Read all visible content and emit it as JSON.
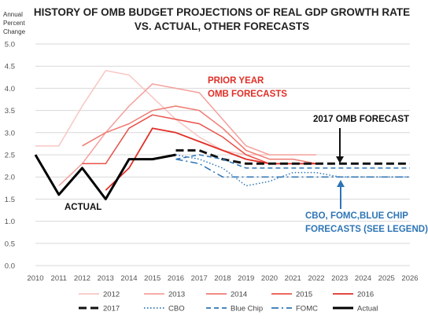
{
  "chart_data": {
    "type": "line",
    "title": [
      "HISTORY OF OMB BUDGET PROJECTIONS OF REAL GDP GROWTH RATE",
      "VS. ACTUAL, OTHER FORECASTS"
    ],
    "ylabel": [
      "Annual",
      "Percent",
      "Change"
    ],
    "xlabel": "",
    "x": [
      2010,
      2011,
      2012,
      2013,
      2014,
      2015,
      2016,
      2017,
      2018,
      2019,
      2020,
      2021,
      2022,
      2023,
      2024,
      2025,
      2026
    ],
    "xlim": [
      2010,
      2026
    ],
    "ylim": [
      0,
      5
    ],
    "yticks": [
      "0.0",
      "0.5",
      "1.0",
      "1.5",
      "2.0",
      "2.5",
      "3.0",
      "3.5",
      "4.0",
      "4.5",
      "5.0"
    ],
    "grid": "horizontal",
    "legend_position": "bottom",
    "series": [
      {
        "name": "2012",
        "color": "#f7c6c3",
        "dash": "solid",
        "width": 1.5,
        "points": [
          [
            2010,
            2.7
          ],
          [
            2011,
            2.7
          ],
          [
            2012,
            3.6
          ],
          [
            2013,
            4.4
          ],
          [
            2014,
            4.3
          ],
          [
            2015,
            3.8
          ],
          [
            2016,
            3.3
          ],
          [
            2017,
            2.9
          ],
          [
            2018,
            2.6
          ],
          [
            2019,
            2.5
          ],
          [
            2020,
            2.5
          ]
        ]
      },
      {
        "name": "2013",
        "color": "#f4a09b",
        "dash": "solid",
        "width": 1.5,
        "points": [
          [
            2011,
            1.8
          ],
          [
            2012,
            2.3
          ],
          [
            2013,
            3.0
          ],
          [
            2014,
            3.6
          ],
          [
            2015,
            4.1
          ],
          [
            2016,
            4.0
          ],
          [
            2017,
            3.9
          ],
          [
            2018,
            3.3
          ],
          [
            2019,
            2.7
          ],
          [
            2020,
            2.5
          ],
          [
            2021,
            2.5
          ],
          [
            2022,
            2.5
          ]
        ]
      },
      {
        "name": "2014",
        "color": "#ef7a72",
        "dash": "solid",
        "width": 1.5,
        "points": [
          [
            2012,
            2.7
          ],
          [
            2013,
            3.0
          ],
          [
            2014,
            3.2
          ],
          [
            2015,
            3.5
          ],
          [
            2016,
            3.6
          ],
          [
            2017,
            3.5
          ],
          [
            2018,
            3.1
          ],
          [
            2019,
            2.6
          ],
          [
            2020,
            2.4
          ],
          [
            2021,
            2.4
          ],
          [
            2022,
            2.3
          ]
        ]
      },
      {
        "name": "2015",
        "color": "#e8524a",
        "dash": "solid",
        "width": 1.5,
        "points": [
          [
            2012,
            2.3
          ],
          [
            2013,
            2.3
          ],
          [
            2014,
            3.1
          ],
          [
            2015,
            3.4
          ],
          [
            2016,
            3.3
          ],
          [
            2017,
            3.2
          ],
          [
            2018,
            2.9
          ],
          [
            2019,
            2.5
          ],
          [
            2020,
            2.3
          ],
          [
            2021,
            2.3
          ],
          [
            2022,
            2.3
          ]
        ]
      },
      {
        "name": "2016",
        "color": "#e02e26",
        "dash": "solid",
        "width": 1.8,
        "points": [
          [
            2013,
            1.7
          ],
          [
            2014,
            2.2
          ],
          [
            2015,
            3.1
          ],
          [
            2016,
            3.0
          ],
          [
            2017,
            2.8
          ],
          [
            2018,
            2.6
          ],
          [
            2019,
            2.4
          ],
          [
            2020,
            2.3
          ],
          [
            2021,
            2.3
          ],
          [
            2022,
            2.3
          ]
        ]
      },
      {
        "name": "2017",
        "color": "#111111",
        "dash": "longdash",
        "width": 3,
        "points": [
          [
            2016,
            2.6
          ],
          [
            2017,
            2.6
          ],
          [
            2018,
            2.4
          ],
          [
            2019,
            2.3
          ],
          [
            2020,
            2.3
          ],
          [
            2021,
            2.3
          ],
          [
            2022,
            2.3
          ],
          [
            2023,
            2.3
          ],
          [
            2024,
            2.3
          ],
          [
            2025,
            2.3
          ],
          [
            2026,
            2.3
          ]
        ]
      },
      {
        "name": "CBO",
        "color": "#2e75b6",
        "dash": "dot",
        "width": 1.5,
        "points": [
          [
            2016,
            2.5
          ],
          [
            2017,
            2.4
          ],
          [
            2018,
            2.2
          ],
          [
            2019,
            1.8
          ],
          [
            2020,
            1.9
          ],
          [
            2021,
            2.1
          ],
          [
            2022,
            2.1
          ],
          [
            2023,
            2.0
          ],
          [
            2024,
            2.0
          ],
          [
            2025,
            2.0
          ],
          [
            2026,
            2.0
          ]
        ]
      },
      {
        "name": "Blue Chip",
        "color": "#2e75b6",
        "dash": "dash",
        "width": 1.5,
        "points": [
          [
            2016,
            2.4
          ],
          [
            2017,
            2.5
          ],
          [
            2018,
            2.4
          ],
          [
            2019,
            2.2
          ],
          [
            2020,
            2.2
          ],
          [
            2021,
            2.2
          ],
          [
            2022,
            2.2
          ],
          [
            2023,
            2.2
          ],
          [
            2024,
            2.2
          ],
          [
            2025,
            2.2
          ],
          [
            2026,
            2.2
          ]
        ]
      },
      {
        "name": "FOMC",
        "color": "#2e75b6",
        "dash": "dashdot",
        "width": 1.5,
        "points": [
          [
            2016,
            2.4
          ],
          [
            2017,
            2.3
          ],
          [
            2018,
            2.0
          ],
          [
            2019,
            2.0
          ],
          [
            2020,
            2.0
          ],
          [
            2021,
            2.0
          ],
          [
            2022,
            2.0
          ],
          [
            2023,
            2.0
          ],
          [
            2024,
            2.0
          ],
          [
            2025,
            2.0
          ],
          [
            2026,
            2.0
          ]
        ]
      },
      {
        "name": "Actual",
        "color": "#000000",
        "dash": "solid",
        "width": 3,
        "points": [
          [
            2010,
            2.5
          ],
          [
            2011,
            1.6
          ],
          [
            2012,
            2.2
          ],
          [
            2013,
            1.5
          ],
          [
            2014,
            2.4
          ],
          [
            2015,
            2.4
          ],
          [
            2016,
            2.5
          ]
        ]
      }
    ],
    "legend": [
      "2012",
      "2013",
      "2014",
      "2015",
      "2016",
      "2017",
      "CBO",
      "Blue Chip",
      "FOMC",
      "Actual"
    ],
    "annotations": [
      {
        "lines": [
          "PRIOR YEAR",
          "OMB FORECASTS"
        ],
        "color": "#e02e26"
      },
      {
        "lines": [
          "2017 OMB FORECAST"
        ],
        "color": "#111111"
      },
      {
        "lines": [
          "ACTUAL"
        ],
        "color": "#111111"
      },
      {
        "lines": [
          "CBO, FOMC,BLUE CHIP",
          "FORECASTS (SEE LEGEND)"
        ],
        "color": "#2e75b6"
      }
    ]
  }
}
